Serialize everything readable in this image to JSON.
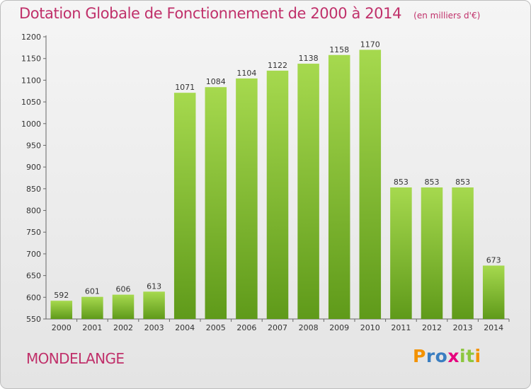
{
  "title": "Dotation Globale de Fonctionnement de 2000 à 2014",
  "subtitle": "(en milliers d'€)",
  "commune": "MONDELANGE",
  "logo": {
    "letters": [
      "P",
      "r",
      "o",
      "x",
      "i",
      "t",
      "i"
    ],
    "colors": [
      "#f39200",
      "#3a7ec1",
      "#3a7ec1",
      "#e6007e",
      "#8dc63f",
      "#8dc63f",
      "#f39200"
    ]
  },
  "chart_data": {
    "type": "bar",
    "title": "Dotation Globale de Fonctionnement de 2000 à 2014",
    "subtitle": "(en milliers d'€)",
    "categories": [
      "2000",
      "2001",
      "2002",
      "2003",
      "2004",
      "2005",
      "2006",
      "2007",
      "2008",
      "2009",
      "2010",
      "2011",
      "2012",
      "2013",
      "2014"
    ],
    "values": [
      592,
      601,
      606,
      613,
      1071,
      1084,
      1104,
      1122,
      1138,
      1158,
      1170,
      853,
      853,
      853,
      673
    ],
    "ylim": [
      550,
      1200
    ],
    "yticks": [
      550,
      600,
      650,
      700,
      750,
      800,
      850,
      900,
      950,
      1000,
      1050,
      1100,
      1150,
      1200
    ],
    "grid": false,
    "bar_color_top": "#a6d94e",
    "bar_color_bottom": "#5f9a1a"
  }
}
